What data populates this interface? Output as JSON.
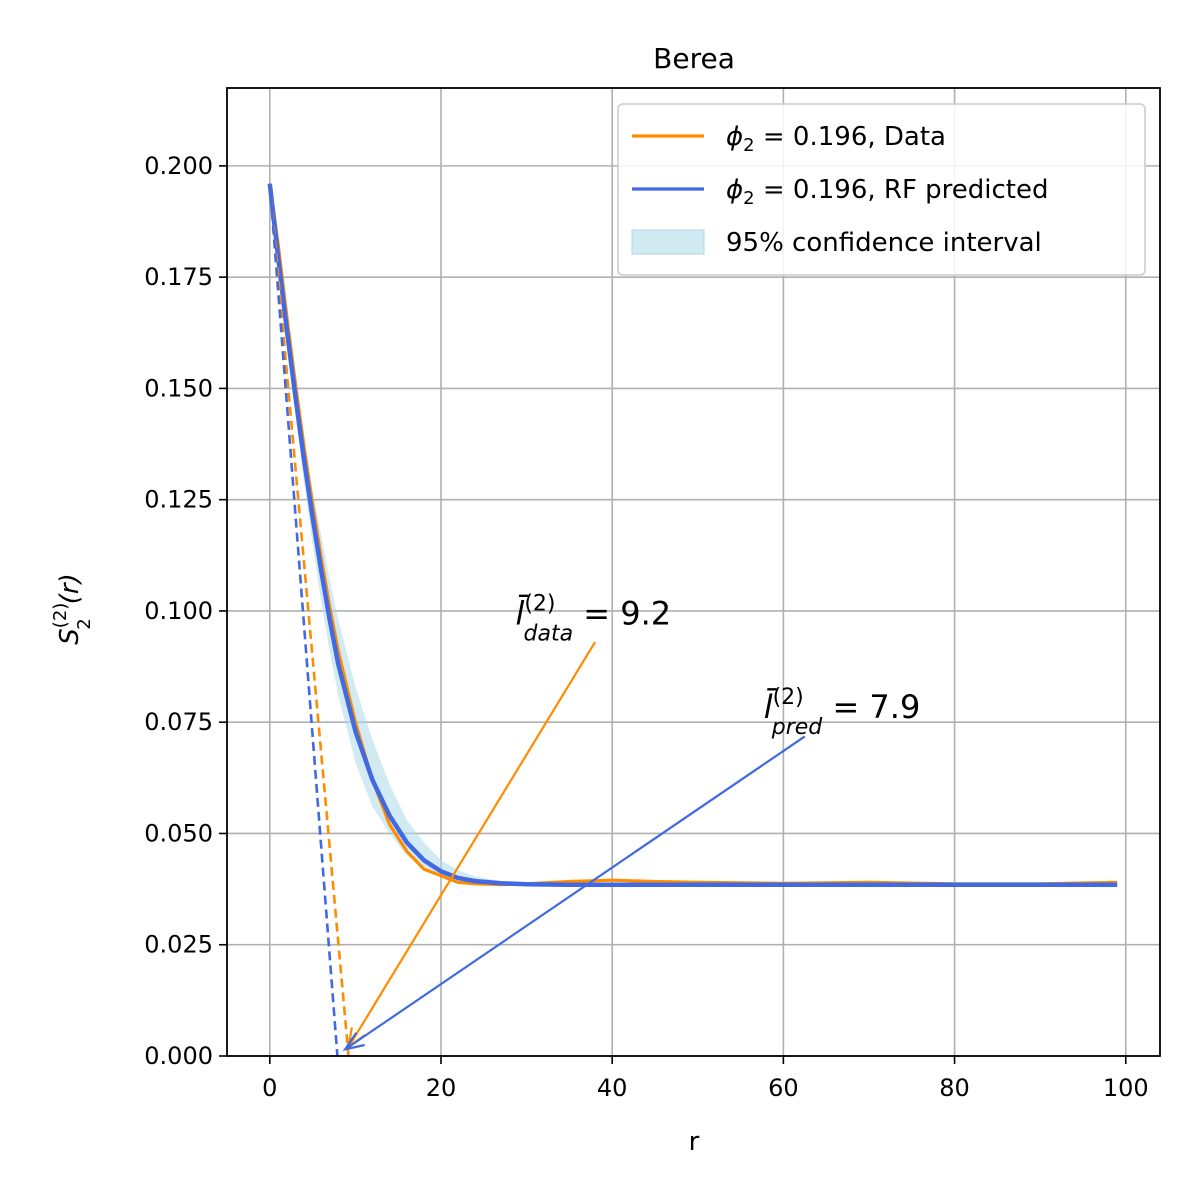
{
  "chart_data": {
    "type": "line",
    "title": "Berea",
    "xlabel": "r",
    "ylabel_base": "S",
    "ylabel_sub": "2",
    "ylabel_sup": "(2)",
    "ylabel_arg": "(r)",
    "xlim": [
      -5,
      104
    ],
    "ylim": [
      0,
      0.2175
    ],
    "xticks": [
      0,
      20,
      40,
      60,
      80,
      100
    ],
    "xtick_labels": [
      "0",
      "20",
      "40",
      "60",
      "80",
      "100"
    ],
    "yticks": [
      0,
      0.025,
      0.05,
      0.075,
      0.1,
      0.125,
      0.15,
      0.175,
      0.2
    ],
    "ytick_labels": [
      "0.000",
      "0.025",
      "0.050",
      "0.075",
      "0.100",
      "0.125",
      "0.150",
      "0.175",
      "0.200"
    ],
    "grid": true,
    "legend_position": "top-right",
    "series": [
      {
        "name": "ϕ₂ = 0.196, Data",
        "legend_math": "ϕ",
        "legend_sub": "2",
        "legend_rest": " = 0.196, Data",
        "color": "#ff8c00",
        "x": [
          0,
          1,
          2,
          3,
          4,
          5,
          6,
          7,
          8,
          10,
          12,
          14,
          16,
          18,
          20,
          22,
          24,
          27,
          30,
          35,
          40,
          45,
          50,
          60,
          70,
          80,
          90,
          99
        ],
        "y": [
          0.196,
          0.182,
          0.166,
          0.151,
          0.137,
          0.124,
          0.112,
          0.101,
          0.091,
          0.075,
          0.062,
          0.052,
          0.046,
          0.042,
          0.0405,
          0.039,
          0.0387,
          0.0385,
          0.0387,
          0.0392,
          0.0395,
          0.0392,
          0.039,
          0.0388,
          0.039,
          0.0387,
          0.0387,
          0.039
        ]
      },
      {
        "name": "ϕ₂ = 0.196, RF predicted",
        "legend_math": "ϕ",
        "legend_sub": "2",
        "legend_rest": " = 0.196, RF predicted",
        "color": "#4169e1",
        "x": [
          0,
          1,
          2,
          3,
          4,
          5,
          6,
          7,
          8,
          10,
          12,
          14,
          16,
          18,
          20,
          22,
          24,
          27,
          30,
          35,
          40,
          50,
          60,
          70,
          80,
          90,
          99
        ],
        "y": [
          0.196,
          0.179,
          0.163,
          0.148,
          0.134,
          0.121,
          0.109,
          0.098,
          0.088,
          0.073,
          0.062,
          0.054,
          0.048,
          0.044,
          0.0415,
          0.04,
          0.0393,
          0.0388,
          0.0386,
          0.0385,
          0.0385,
          0.0385,
          0.0385,
          0.0385,
          0.0385,
          0.0385,
          0.0385
        ]
      }
    ],
    "confidence_band": {
      "name": "95% confidence interval",
      "color": "#add8e6",
      "x": [
        0,
        1,
        2,
        3,
        4,
        5,
        6,
        7,
        8,
        10,
        12,
        14,
        16,
        18,
        20,
        22,
        24,
        27,
        30,
        35,
        40,
        50,
        60,
        80,
        99
      ],
      "lower": [
        0.196,
        0.177,
        0.16,
        0.144,
        0.129,
        0.115,
        0.102,
        0.091,
        0.081,
        0.066,
        0.056,
        0.05,
        0.045,
        0.0425,
        0.0405,
        0.0395,
        0.039,
        0.0386,
        0.0384,
        0.0383,
        0.0383,
        0.0383,
        0.0383,
        0.0383,
        0.0383
      ],
      "upper": [
        0.196,
        0.181,
        0.166,
        0.152,
        0.139,
        0.127,
        0.117,
        0.107,
        0.098,
        0.083,
        0.071,
        0.061,
        0.053,
        0.048,
        0.044,
        0.0418,
        0.0403,
        0.0393,
        0.0389,
        0.0387,
        0.0387,
        0.0387,
        0.0387,
        0.0387,
        0.0387
      ]
    },
    "tangent_lines": [
      {
        "color": "#ff8c00",
        "from": [
          0,
          0.196
        ],
        "to": [
          9.2,
          0
        ]
      },
      {
        "color": "#4169e1",
        "from": [
          0,
          0.196
        ],
        "to": [
          7.9,
          0
        ]
      }
    ],
    "annotations": [
      {
        "base": "l̄",
        "sub": "data",
        "sup": "(2)",
        "rest": " = 9.2",
        "color": "#ff8c00",
        "text_at": [
          28.7,
          0.097
        ],
        "arrow_start": [
          38.0,
          0.093
        ],
        "arrow_end": [
          9.2,
          0.002
        ]
      },
      {
        "base": "l̄",
        "sub": "pred",
        "sup": "(2)",
        "rest": " = 7.9",
        "color": "#4169e1",
        "text_at": [
          57.7,
          0.076
        ],
        "arrow_start": [
          62.5,
          0.0718
        ],
        "arrow_end": [
          8.8,
          0.0015
        ]
      }
    ]
  }
}
